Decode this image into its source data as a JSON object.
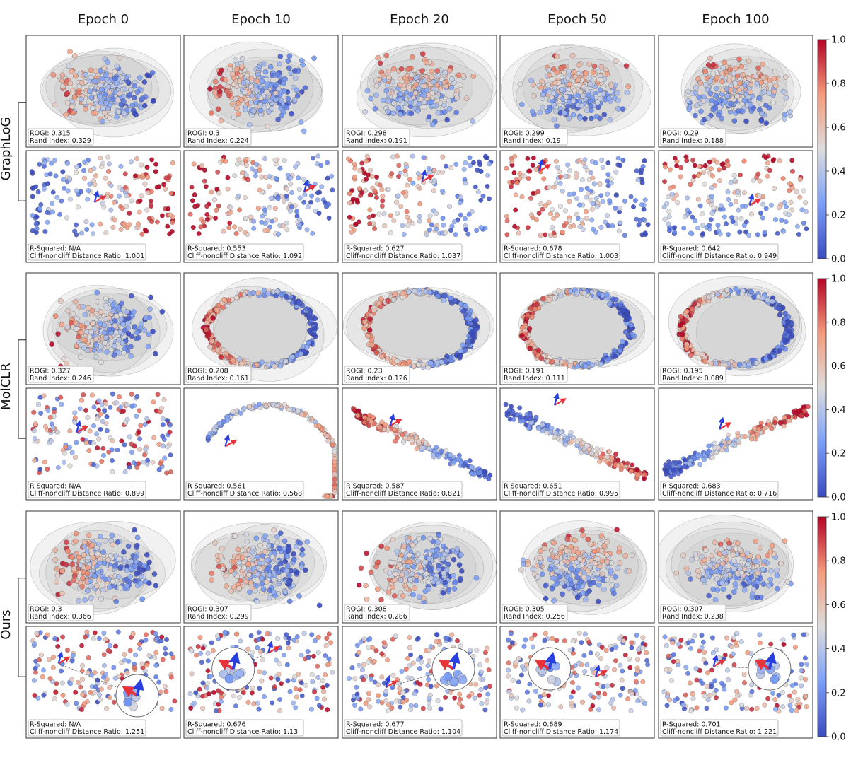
{
  "chart_data": {
    "type": "scatter",
    "columns": [
      "Epoch 0",
      "Epoch 10",
      "Epoch 20",
      "Epoch 50",
      "Epoch 100"
    ],
    "groups": [
      {
        "name": "GraphLoG",
        "top_panels": [
          {
            "line1": "ROGI: 0.315",
            "line2": "Rand Index: 0.329"
          },
          {
            "line1": "ROGI: 0.3",
            "line2": "Rand Index: 0.224"
          },
          {
            "line1": "ROGI: 0.298",
            "line2": "Rand Index: 0.191"
          },
          {
            "line1": "ROGI: 0.299",
            "line2": "Rand Index: 0.19"
          },
          {
            "line1": "ROGI: 0.29",
            "line2": "Rand Index: 0.188"
          }
        ],
        "bottom_panels": [
          {
            "line1": "R-Squared: N/A",
            "line2": "Cliff-noncliff Distance Ratio: 1.001"
          },
          {
            "line1": "R-Squared: 0.553",
            "line2": "Cliff-noncliff Distance Ratio: 1.092"
          },
          {
            "line1": "R-Squared: 0.627",
            "line2": "Cliff-noncliff Distance Ratio: 1.037"
          },
          {
            "line1": "R-Squared: 0.678",
            "line2": "Cliff-noncliff Distance Ratio: 1.003"
          },
          {
            "line1": "R-Squared: 0.642",
            "line2": "Cliff-noncliff Distance Ratio: 0.949"
          }
        ]
      },
      {
        "name": "MolCLR",
        "top_panels": [
          {
            "line1": "ROGI: 0.327",
            "line2": "Rand Index: 0.246"
          },
          {
            "line1": "ROGI: 0.208",
            "line2": "Rand Index: 0.161"
          },
          {
            "line1": "ROGI: 0.23",
            "line2": "Rand Index: 0.126"
          },
          {
            "line1": "ROGI: 0.191",
            "line2": "Rand Index: 0.111"
          },
          {
            "line1": "ROGI: 0.195",
            "line2": "Rand Index: 0.089"
          }
        ],
        "bottom_panels": [
          {
            "line1": "R-Squared: N/A",
            "line2": "Cliff-noncliff Distance Ratio: 0.899"
          },
          {
            "line1": "R-Squared: 0.561",
            "line2": "Cliff-noncliff Distance Ratio: 0.568"
          },
          {
            "line1": "R-Squared: 0.587",
            "line2": "Cliff-noncliff Distance Ratio: 0.821"
          },
          {
            "line1": "R-Squared: 0.651",
            "line2": "Cliff-noncliff Distance Ratio: 0.995"
          },
          {
            "line1": "R-Squared: 0.683",
            "line2": "Cliff-noncliff Distance Ratio: 0.716"
          }
        ]
      },
      {
        "name": "Ours",
        "top_panels": [
          {
            "line1": "ROGI: 0.3",
            "line2": "Rand Index: 0.366"
          },
          {
            "line1": "ROGI: 0.307",
            "line2": "Rand Index: 0.299"
          },
          {
            "line1": "ROGI: 0.308",
            "line2": "Rand Index: 0.286"
          },
          {
            "line1": "ROGI: 0.305",
            "line2": "Rand Index: 0.256"
          },
          {
            "line1": "ROGI: 0.307",
            "line2": "Rand Index: 0.238"
          }
        ],
        "bottom_panels": [
          {
            "line1": "R-Squared: N/A",
            "line2": "Cliff-noncliff Distance Ratio: 1.251"
          },
          {
            "line1": "R-Squared: 0.676",
            "line2": "Cliff-noncliff Distance Ratio: 1.13"
          },
          {
            "line1": "R-Squared: 0.677",
            "line2": "Cliff-noncliff Distance Ratio: 1.104"
          },
          {
            "line1": "R-Squared: 0.689",
            "line2": "Cliff-noncliff Distance Ratio: 1.174"
          },
          {
            "line1": "R-Squared: 0.701",
            "line2": "Cliff-noncliff Distance Ratio: 1.221"
          }
        ]
      }
    ],
    "colorbar": {
      "range": [
        0.0,
        1.0
      ],
      "ticks": [
        "1.0",
        "0.8",
        "0.6",
        "0.4",
        "0.2",
        "0.0"
      ],
      "colormap": "coolwarm",
      "low_color": "#3b4cc0",
      "mid_color": "#dddddd",
      "high_color": "#b40426"
    }
  }
}
